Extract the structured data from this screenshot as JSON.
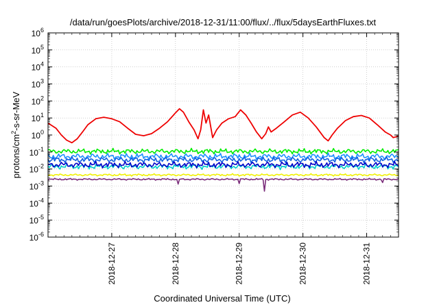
{
  "chart_data": {
    "type": "line",
    "title": "/data/run/goesPlots/archive/2018-12-31/11:00/flux/../flux/5daysEarthFluxes.txt",
    "xlabel": "Coordinated Universal Time (UTC)",
    "ylabel": {
      "base": "protons/cm",
      "sup": "2",
      "rest": "-s-sr-MeV"
    },
    "x_range": [
      "2018-12-26T00:00",
      "2018-12-31T12:00"
    ],
    "x_ticks": [
      "2018-12-27",
      "2018-12-28",
      "2018-12-29",
      "2018-12-30",
      "2018-12-31"
    ],
    "y_scale": "log",
    "y_range": [
      1e-06,
      1000000.0
    ],
    "y_ticks": [
      {
        "value": 1e-06,
        "base": "10",
        "exp": "-6"
      },
      {
        "value": 1e-05,
        "base": "10",
        "exp": "-5"
      },
      {
        "value": 0.0001,
        "base": "10",
        "exp": "-4"
      },
      {
        "value": 0.001,
        "base": "10",
        "exp": "-3"
      },
      {
        "value": 0.01,
        "base": "10",
        "exp": "-2"
      },
      {
        "value": 0.1,
        "base": "10",
        "exp": "-1"
      },
      {
        "value": 1,
        "base": "10",
        "exp": "0"
      },
      {
        "value": 10,
        "base": "10",
        "exp": "1"
      },
      {
        "value": 100,
        "base": "10",
        "exp": "2"
      },
      {
        "value": 1000,
        "base": "10",
        "exp": "3"
      },
      {
        "value": 10000,
        "base": "10",
        "exp": "4"
      },
      {
        "value": 100000,
        "base": "10",
        "exp": "5"
      },
      {
        "value": 1000000,
        "base": "10",
        "exp": "6"
      }
    ],
    "grid": true,
    "series": [
      {
        "color": "#ee0000",
        "points": [
          [
            "2018-12-26T00:00",
            5.0
          ],
          [
            "2018-12-26T03:00",
            2.5
          ],
          [
            "2018-12-26T05:00",
            1.0
          ],
          [
            "2018-12-26T07:00",
            0.5
          ],
          [
            "2018-12-26T09:00",
            0.35
          ],
          [
            "2018-12-26T11:00",
            0.6
          ],
          [
            "2018-12-26T13:00",
            1.5
          ],
          [
            "2018-12-26T15:00",
            4.0
          ],
          [
            "2018-12-26T18:00",
            9.0
          ],
          [
            "2018-12-26T21:00",
            11.0
          ],
          [
            "2018-12-27T00:00",
            9.0
          ],
          [
            "2018-12-27T03:00",
            6.0
          ],
          [
            "2018-12-27T06:00",
            2.5
          ],
          [
            "2018-12-27T09:00",
            1.1
          ],
          [
            "2018-12-27T12:00",
            0.9
          ],
          [
            "2018-12-27T15:00",
            1.2
          ],
          [
            "2018-12-27T18:00",
            2.5
          ],
          [
            "2018-12-27T21:00",
            6.0
          ],
          [
            "2018-12-28T00:00",
            20.0
          ],
          [
            "2018-12-28T01:30",
            35.0
          ],
          [
            "2018-12-28T03:00",
            22.0
          ],
          [
            "2018-12-28T05:00",
            6.0
          ],
          [
            "2018-12-28T07:00",
            2.0
          ],
          [
            "2018-12-28T08:30",
            0.6
          ],
          [
            "2018-12-28T09:30",
            2.0
          ],
          [
            "2018-12-28T10:30",
            30.0
          ],
          [
            "2018-12-28T11:30",
            5.0
          ],
          [
            "2018-12-28T12:30",
            15.0
          ],
          [
            "2018-12-28T14:00",
            0.7
          ],
          [
            "2018-12-28T15:30",
            2.0
          ],
          [
            "2018-12-28T17:30",
            5.0
          ],
          [
            "2018-12-28T20:00",
            9.0
          ],
          [
            "2018-12-28T22:30",
            12.0
          ],
          [
            "2018-12-29T00:30",
            30.0
          ],
          [
            "2018-12-29T02:30",
            15.0
          ],
          [
            "2018-12-29T04:30",
            5.0
          ],
          [
            "2018-12-29T06:30",
            1.5
          ],
          [
            "2018-12-29T08:30",
            0.6
          ],
          [
            "2018-12-29T10:00",
            1.2
          ],
          [
            "2018-12-29T11:00",
            3.0
          ],
          [
            "2018-12-29T12:00",
            1.5
          ],
          [
            "2018-12-29T14:00",
            2.5
          ],
          [
            "2018-12-29T17:00",
            6.0
          ],
          [
            "2018-12-29T20:00",
            15.0
          ],
          [
            "2018-12-29T23:00",
            22.0
          ],
          [
            "2018-12-30T02:00",
            10.0
          ],
          [
            "2018-12-30T05:00",
            3.0
          ],
          [
            "2018-12-30T08:00",
            0.7
          ],
          [
            "2018-12-30T09:30",
            0.45
          ],
          [
            "2018-12-30T11:00",
            1.0
          ],
          [
            "2018-12-30T13:00",
            2.5
          ],
          [
            "2018-12-30T16:00",
            7.0
          ],
          [
            "2018-12-30T19:00",
            12.0
          ],
          [
            "2018-12-30T22:00",
            14.0
          ],
          [
            "2018-12-31T01:00",
            10.0
          ],
          [
            "2018-12-31T04:00",
            4.0
          ],
          [
            "2018-12-31T07:00",
            1.5
          ],
          [
            "2018-12-31T09:00",
            1.0
          ],
          [
            "2018-12-31T10:00",
            0.7
          ],
          [
            "2018-12-31T12:00",
            0.85
          ]
        ]
      },
      {
        "color": "#00ee00",
        "level": 0.11,
        "spread": 0.12,
        "phase": 0.3
      },
      {
        "color": "#1e90ff",
        "level": 0.055,
        "spread": 0.14,
        "phase": 1.1
      },
      {
        "color": "#1060e0",
        "level": 0.035,
        "spread": 0.13,
        "phase": 2.0
      },
      {
        "color": "#00cccc",
        "level": 0.014,
        "spread": 0.12,
        "phase": 2.7
      },
      {
        "color": "#0000c8",
        "level": 0.018,
        "spread": 0.14,
        "phase": 3.5
      },
      {
        "color": "#f0f000",
        "level": 0.0045,
        "spread": 0.05,
        "phase": 4.2
      },
      {
        "color": "#7b2d7b",
        "level": 0.0025,
        "spread": 0.04,
        "phase": 5.0,
        "dips": [
          [
            "2018-12-28T00:45",
            0.0013
          ],
          [
            "2018-12-29T00:10",
            0.0014
          ],
          [
            "2018-12-29T09:30",
            0.0005
          ],
          [
            "2018-12-31T06:00",
            0.0016
          ]
        ]
      }
    ]
  }
}
